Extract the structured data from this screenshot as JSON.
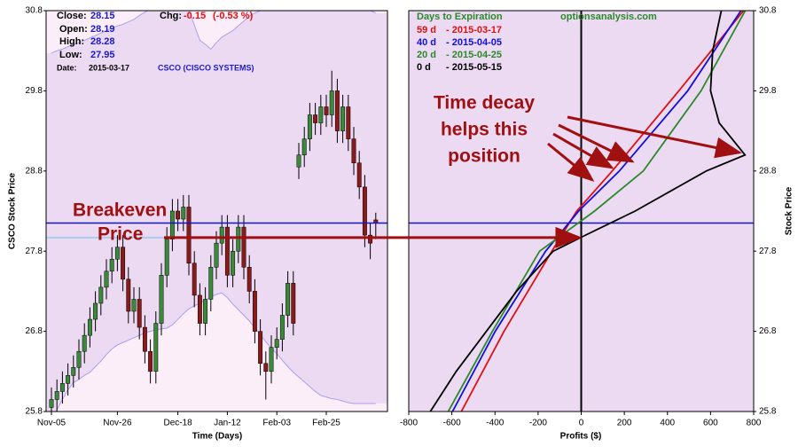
{
  "chart_data": [
    {
      "type": "candlestick",
      "header": {
        "close_label": "Close:",
        "close": 28.15,
        "open_label": "Open:",
        "open": 28.19,
        "high_label": "High:",
        "high": 28.28,
        "low_label": "Low:",
        "low": 27.95,
        "date_label": "Date:",
        "date": "2015-03-17",
        "chg_label": "Chg:",
        "chg": -0.15,
        "chg_pct": "(-0.53 %)",
        "symbol": "CSCO (CISCO SYSTEMS)"
      },
      "x_label": "Time (Days)",
      "y_label": "CSCO Stock Price",
      "categories": [
        "Nov-05",
        null,
        null,
        null,
        null,
        null,
        null,
        null,
        null,
        null,
        null,
        null,
        "Nov-26",
        null,
        null,
        null,
        null,
        null,
        null,
        null,
        null,
        null,
        null,
        "Dec-18",
        null,
        null,
        null,
        null,
        null,
        null,
        null,
        null,
        "Jan-12",
        null,
        null,
        null,
        null,
        null,
        null,
        null,
        null,
        "Feb-03",
        null,
        null,
        null,
        null,
        null,
        null,
        null,
        null,
        "Feb-25",
        null,
        null,
        null,
        null,
        null,
        null,
        null,
        null,
        null
      ],
      "open": [
        25.85,
        25.95,
        26.05,
        26.15,
        26.25,
        26.35,
        26.55,
        26.75,
        26.95,
        27.15,
        27.35,
        27.55,
        27.7,
        27.85,
        27.45,
        27.05,
        27.2,
        26.85,
        26.55,
        26.3,
        26.9,
        27.5,
        27.95,
        28.3,
        28.2,
        28.35,
        27.65,
        27.25,
        26.9,
        27.2,
        27.6,
        27.9,
        28.1,
        27.5,
        27.8,
        28.1,
        27.6,
        27.3,
        26.8,
        26.4,
        26.3,
        26.6,
        26.7,
        27.0,
        27.4,
        28.85,
        29.0,
        29.2,
        29.5,
        29.4,
        29.6,
        29.5,
        29.8,
        29.3,
        29.6,
        29.2,
        28.9,
        28.6,
        28.0,
        28.19
      ],
      "high": [
        26.1,
        26.2,
        26.3,
        26.4,
        26.5,
        26.7,
        26.9,
        27.1,
        27.3,
        27.5,
        27.7,
        27.85,
        28.0,
        28.0,
        27.6,
        27.35,
        27.35,
        27.0,
        26.7,
        27.05,
        27.65,
        28.1,
        28.45,
        28.45,
        28.5,
        28.5,
        27.8,
        27.4,
        27.35,
        27.75,
        28.05,
        28.25,
        28.25,
        27.95,
        28.25,
        28.25,
        27.75,
        27.45,
        26.95,
        26.55,
        26.75,
        26.85,
        27.15,
        27.55,
        27.55,
        29.15,
        29.35,
        29.65,
        29.65,
        29.75,
        29.75,
        30.05,
        29.95,
        29.75,
        29.75,
        29.35,
        29.05,
        28.75,
        28.15,
        28.28
      ],
      "low": [
        25.7,
        25.8,
        25.9,
        26.0,
        26.1,
        26.2,
        26.4,
        26.6,
        26.8,
        27.0,
        27.2,
        27.4,
        27.55,
        27.3,
        26.9,
        26.9,
        26.7,
        26.4,
        26.15,
        26.15,
        26.75,
        27.35,
        27.8,
        28.05,
        28.05,
        27.5,
        27.1,
        26.75,
        26.75,
        27.05,
        27.45,
        27.75,
        27.35,
        27.35,
        27.65,
        27.45,
        27.15,
        26.65,
        26.25,
        25.95,
        26.15,
        26.45,
        26.55,
        26.85,
        26.75,
        28.7,
        28.85,
        29.05,
        29.25,
        29.25,
        29.35,
        29.35,
        29.15,
        29.15,
        29.05,
        28.75,
        28.45,
        27.85,
        27.7,
        27.95
      ],
      "close": [
        25.95,
        26.05,
        26.15,
        26.25,
        26.35,
        26.55,
        26.75,
        26.95,
        27.15,
        27.35,
        27.55,
        27.7,
        27.85,
        27.45,
        27.05,
        27.2,
        26.85,
        26.55,
        26.3,
        26.9,
        27.5,
        27.95,
        28.3,
        28.2,
        28.35,
        27.65,
        27.25,
        26.9,
        27.2,
        27.6,
        27.9,
        28.1,
        27.5,
        27.8,
        28.1,
        27.6,
        27.3,
        26.8,
        26.4,
        26.3,
        26.6,
        26.7,
        27.0,
        27.4,
        26.9,
        29.0,
        29.2,
        29.5,
        29.4,
        29.6,
        29.5,
        29.8,
        29.3,
        29.6,
        29.2,
        28.9,
        28.6,
        28.0,
        27.9,
        28.15
      ],
      "upper_band": [
        30.27,
        30.3,
        30.32,
        30.35,
        30.38,
        30.4,
        30.43,
        30.46,
        30.49,
        30.52,
        30.55,
        30.58,
        30.61,
        30.63,
        30.66,
        30.69,
        30.74,
        30.78,
        30.82,
        30.88,
        30.93,
        30.93,
        30.93,
        30.93,
        30.88,
        30.82,
        30.62,
        30.43,
        30.38,
        30.32,
        30.4,
        30.47,
        30.51,
        30.55,
        30.61,
        30.67,
        30.73,
        30.77,
        30.8,
        30.84,
        30.88,
        30.9,
        30.92,
        30.93,
        30.93,
        30.93,
        30.93,
        30.93,
        30.93,
        30.93,
        30.93,
        30.93,
        30.92,
        30.91,
        30.9,
        30.88,
        30.85,
        30.82,
        30.8,
        30.77
      ],
      "lower_band": [
        25.68,
        25.82,
        25.95,
        26.07,
        26.16,
        26.2,
        26.25,
        26.29,
        26.36,
        26.43,
        26.51,
        26.58,
        26.63,
        26.66,
        26.69,
        26.72,
        26.75,
        26.78,
        26.8,
        26.82,
        26.83,
        26.84,
        26.88,
        26.95,
        27.02,
        27.08,
        27.12,
        27.15,
        27.19,
        27.23,
        27.26,
        27.28,
        27.22,
        27.14,
        27.07,
        27.0,
        26.93,
        26.84,
        26.76,
        26.67,
        26.59,
        26.52,
        26.44,
        26.36,
        26.29,
        26.23,
        26.17,
        26.11,
        26.05,
        26.0,
        25.98,
        25.96,
        25.95,
        25.93,
        25.91,
        25.9,
        25.9,
        25.9,
        25.9,
        25.9
      ],
      "ylim": [
        25.8,
        30.8
      ],
      "yticks": [
        25.8,
        26.8,
        27.8,
        28.8,
        29.8,
        30.8
      ],
      "price_line": 28.15,
      "breakeven": 27.97,
      "up_color": "#3a8a3a",
      "down_color": "#8b1a1a",
      "band_color": "#a9a0ee",
      "band_fill": "#fbeef8",
      "price_line_color": "#1414c8",
      "breakeven_color": "#a8cdee",
      "annotations": [
        "Breakeven",
        "Price"
      ]
    },
    {
      "type": "line",
      "x_label": "Profits ($)",
      "y_label": "Stock Price",
      "legend_title": "Days to Expiration",
      "watermark": "optionsanalysis.com",
      "xlim": [
        -800,
        800
      ],
      "xticks": [
        -800,
        -600,
        -400,
        -200,
        0,
        200,
        400,
        600,
        800
      ],
      "ylim": [
        25.8,
        30.8
      ],
      "yticks": [
        25.8,
        26.8,
        27.8,
        28.8,
        29.8,
        30.8
      ],
      "price_line": 28.15,
      "price_line_color": "#1414c8",
      "series": [
        {
          "name": "59 d",
          "expiry": "- 2015-03-17",
          "color": "#e01010",
          "x": [
            -556,
            -358,
            -136,
            -21,
            144,
            453,
            753
          ],
          "values": [
            25.8,
            26.8,
            27.8,
            28.3,
            28.8,
            29.8,
            30.8
          ]
        },
        {
          "name": "40 d",
          "expiry": "- 2015-04-05",
          "color": "#1010e0",
          "x": [
            -597,
            -399,
            -165,
            -12,
            177,
            494,
            741
          ],
          "values": [
            25.8,
            26.8,
            27.8,
            28.3,
            28.8,
            29.8,
            30.8
          ]
        },
        {
          "name": "20 d",
          "expiry": "- 2015-04-25",
          "color": "#2a8a2a",
          "x": [
            -617,
            -412,
            -193,
            62,
            288,
            556,
            761
          ],
          "values": [
            25.8,
            26.8,
            27.8,
            28.3,
            28.8,
            29.8,
            30.8
          ]
        },
        {
          "name": "0 d",
          "expiry": "- 2015-05-15",
          "color": "#000000",
          "x": [
            -700,
            -580,
            -440,
            -300,
            -130,
            20,
            250,
            580,
            760,
            640,
            600,
            610,
            650
          ],
          "values": [
            25.8,
            26.3,
            26.8,
            27.3,
            27.8,
            28.0,
            28.3,
            28.8,
            29.0,
            29.4,
            29.8,
            30.3,
            30.8
          ]
        }
      ],
      "annotations": [
        "Time decay",
        "helps this",
        "position"
      ]
    }
  ]
}
